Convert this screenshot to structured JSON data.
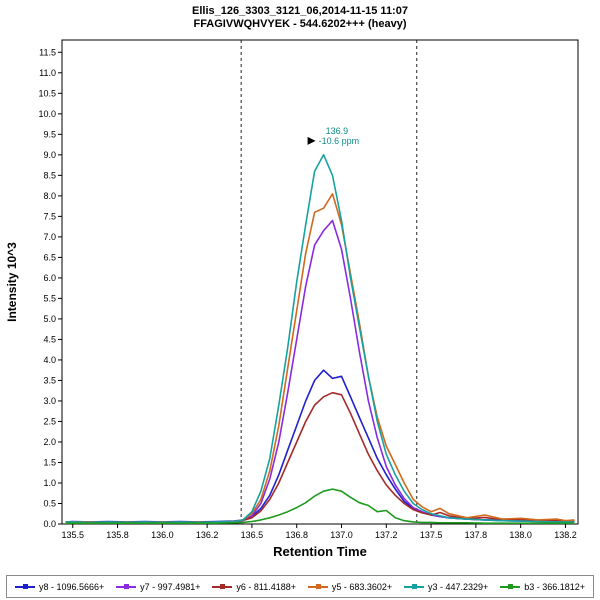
{
  "header": {
    "title_line1": "Ellis_126_3303_3121_06,2014-11-15 11:07",
    "title_line2": "FFAGIVWQHVYEK - 544.6202+++ (heavy)"
  },
  "chart_data": {
    "type": "line",
    "title": "Ellis_126_3303_3121_06,2014-11-15 11:07",
    "subtitle": "FFAGIVWQHVYEK - 544.6202+++ (heavy)",
    "xlabel": "Retention Time",
    "ylabel": "Intensity 10^3",
    "xlim": [
      135.44,
      138.32
    ],
    "ylim": [
      0,
      11.8
    ],
    "grid": false,
    "legend_position": "bottom",
    "xtick_positions": [
      135.5,
      135.75,
      136.0,
      136.25,
      136.5,
      136.75,
      137.0,
      137.25,
      137.5,
      137.75,
      138.0,
      138.25
    ],
    "xtick_labels": [
      "135.5",
      "135.8",
      "136.0",
      "136.2",
      "136.5",
      "136.8",
      "137.0",
      "137.2",
      "137.5",
      "137.8",
      "138.0",
      "138.2"
    ],
    "yticks": [
      0.0,
      0.5,
      1.0,
      1.5,
      2.0,
      2.5,
      3.0,
      3.5,
      4.0,
      4.5,
      5.0,
      5.5,
      6.0,
      6.5,
      7.0,
      7.5,
      8.0,
      8.5,
      9.0,
      9.5,
      10.0,
      10.5,
      11.0,
      11.5
    ],
    "peak_boundaries": [
      136.44,
      137.42
    ],
    "annotation": {
      "x": 136.9,
      "y": 9.0,
      "rt_label": "136.9",
      "ppm_label": "-10.6 ppm",
      "color": "#0f8c8c"
    },
    "x": [
      135.46,
      135.5,
      135.6,
      135.7,
      135.8,
      135.9,
      136.0,
      136.1,
      136.2,
      136.3,
      136.4,
      136.45,
      136.5,
      136.55,
      136.6,
      136.65,
      136.7,
      136.75,
      136.8,
      136.85,
      136.9,
      136.95,
      137.0,
      137.05,
      137.1,
      137.15,
      137.2,
      137.25,
      137.3,
      137.35,
      137.4,
      137.45,
      137.5,
      137.55,
      137.6,
      137.7,
      137.8,
      137.9,
      138.0,
      138.1,
      138.2,
      138.25,
      138.3
    ],
    "series": [
      {
        "name": "y8 - 1096.5666+",
        "color": "#2020cc",
        "y": [
          0.05,
          0.06,
          0.05,
          0.06,
          0.05,
          0.06,
          0.05,
          0.06,
          0.05,
          0.06,
          0.07,
          0.1,
          0.18,
          0.38,
          0.7,
          1.2,
          1.8,
          2.4,
          3.0,
          3.5,
          3.75,
          3.55,
          3.6,
          3.1,
          2.6,
          2.1,
          1.6,
          1.2,
          0.85,
          0.55,
          0.38,
          0.28,
          0.22,
          0.18,
          0.15,
          0.12,
          0.1,
          0.1,
          0.08,
          0.08,
          0.07,
          0.06,
          0.06
        ]
      },
      {
        "name": "y7 - 997.4981+",
        "color": "#8a2be2",
        "y": [
          0.04,
          0.04,
          0.05,
          0.04,
          0.04,
          0.05,
          0.04,
          0.05,
          0.04,
          0.05,
          0.05,
          0.08,
          0.2,
          0.5,
          1.1,
          2.0,
          3.2,
          4.5,
          5.8,
          6.8,
          7.15,
          7.4,
          6.7,
          5.5,
          4.2,
          3.0,
          2.1,
          1.4,
          0.95,
          0.62,
          0.4,
          0.3,
          0.22,
          0.18,
          0.15,
          0.12,
          0.1,
          0.08,
          0.07,
          0.06,
          0.05,
          0.05,
          0.04
        ]
      },
      {
        "name": "y6 - 811.4188+",
        "color": "#a52a2a",
        "y": [
          0.05,
          0.05,
          0.04,
          0.05,
          0.04,
          0.05,
          0.04,
          0.05,
          0.04,
          0.05,
          0.06,
          0.09,
          0.15,
          0.32,
          0.6,
          1.0,
          1.5,
          2.0,
          2.5,
          2.9,
          3.1,
          3.2,
          3.15,
          2.7,
          2.2,
          1.7,
          1.3,
          0.95,
          0.7,
          0.5,
          0.35,
          0.27,
          0.22,
          0.28,
          0.2,
          0.13,
          0.16,
          0.1,
          0.11,
          0.08,
          0.09,
          0.07,
          0.08
        ]
      },
      {
        "name": "y5 - 683.3602+",
        "color": "#d2691e",
        "y": [
          0.05,
          0.05,
          0.05,
          0.04,
          0.05,
          0.04,
          0.05,
          0.04,
          0.05,
          0.04,
          0.06,
          0.1,
          0.25,
          0.6,
          1.3,
          2.4,
          3.8,
          5.2,
          6.6,
          7.6,
          7.7,
          8.05,
          7.3,
          6.1,
          4.9,
          3.6,
          2.6,
          1.9,
          1.45,
          1.0,
          0.6,
          0.42,
          0.3,
          0.38,
          0.25,
          0.15,
          0.22,
          0.12,
          0.14,
          0.1,
          0.12,
          0.08,
          0.1
        ]
      },
      {
        "name": "y3 - 447.2329+",
        "color": "#17a2a2",
        "y": [
          0.05,
          0.05,
          0.04,
          0.05,
          0.04,
          0.05,
          0.04,
          0.05,
          0.04,
          0.05,
          0.06,
          0.1,
          0.3,
          0.8,
          1.6,
          2.9,
          4.3,
          5.9,
          7.3,
          8.6,
          9.0,
          8.5,
          7.4,
          6.0,
          4.8,
          3.6,
          2.5,
          1.7,
          1.2,
          0.8,
          0.5,
          0.35,
          0.25,
          0.2,
          0.15,
          0.12,
          0.1,
          0.08,
          0.07,
          0.06,
          0.05,
          0.05,
          0.05
        ]
      },
      {
        "name": "b3 - 366.1812+",
        "color": "#1e9b1e",
        "y": [
          0.02,
          0.02,
          0.02,
          0.02,
          0.02,
          0.02,
          0.02,
          0.02,
          0.02,
          0.02,
          0.03,
          0.04,
          0.06,
          0.1,
          0.15,
          0.22,
          0.3,
          0.4,
          0.52,
          0.68,
          0.8,
          0.85,
          0.8,
          0.65,
          0.52,
          0.45,
          0.3,
          0.33,
          0.15,
          0.08,
          0.05,
          0.04,
          0.04,
          0.03,
          0.03,
          0.03,
          0.02,
          0.02,
          0.02,
          0.02,
          0.02,
          0.02,
          0.02
        ]
      }
    ]
  }
}
